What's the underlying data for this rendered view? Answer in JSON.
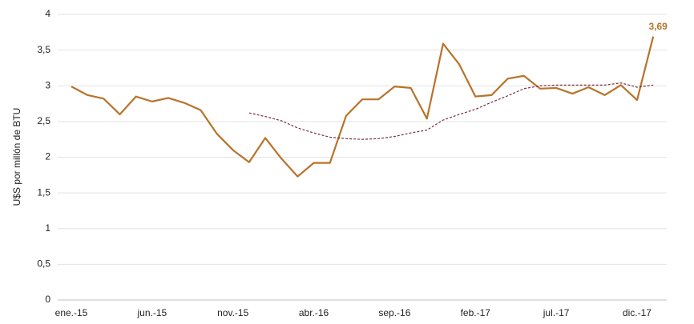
{
  "chart_data": {
    "type": "line",
    "y_label": "U$S por millón de BTU",
    "categories": [
      "ene.-15",
      null,
      null,
      null,
      null,
      "jun.-15",
      null,
      null,
      null,
      null,
      "nov.-15",
      null,
      null,
      null,
      null,
      "abr.-16",
      null,
      null,
      null,
      null,
      "sep.-16",
      null,
      null,
      null,
      null,
      "feb.-17",
      null,
      null,
      null,
      null,
      "jul.-17",
      null,
      null,
      null,
      null,
      "dic.-17",
      null
    ],
    "series": [
      {
        "color": "#b8732a",
        "style": "solid",
        "values": [
          2.99,
          2.87,
          2.82,
          2.6,
          2.85,
          2.78,
          2.83,
          2.76,
          2.66,
          2.33,
          2.1,
          1.93,
          2.27,
          1.98,
          1.73,
          1.92,
          1.92,
          2.58,
          2.81,
          2.81,
          2.99,
          2.97,
          2.54,
          3.59,
          3.3,
          2.85,
          2.87,
          3.1,
          3.14,
          2.96,
          2.97,
          2.89,
          2.98,
          2.87,
          3.01,
          2.8,
          3.69
        ],
        "value_labels": [
          null,
          null,
          null,
          null,
          null,
          null,
          null,
          null,
          null,
          null,
          null,
          null,
          null,
          null,
          null,
          null,
          null,
          null,
          null,
          null,
          null,
          null,
          null,
          null,
          null,
          null,
          null,
          null,
          null,
          null,
          null,
          null,
          null,
          null,
          null,
          null,
          "3,69"
        ]
      },
      {
        "color": "#7b2c3f",
        "style": "dashed",
        "values": [
          null,
          null,
          null,
          null,
          null,
          null,
          null,
          null,
          null,
          null,
          null,
          2.62,
          2.57,
          2.51,
          2.41,
          2.34,
          2.28,
          2.26,
          2.25,
          2.26,
          2.29,
          2.34,
          2.38,
          2.52,
          2.6,
          2.67,
          2.77,
          2.86,
          2.96,
          3.0,
          3.01,
          3.01,
          3.01,
          3.01,
          3.04,
          2.98,
          3.01
        ]
      }
    ],
    "ylim": [
      0,
      4
    ],
    "yticks": [
      0,
      {
        "value": 0.5,
        "label": "0,5"
      },
      1,
      {
        "value": 1.5,
        "label": "1,5"
      },
      2,
      {
        "value": 2.5,
        "label": "2,5"
      },
      3,
      {
        "value": 3.5,
        "label": "3,5"
      },
      4
    ],
    "grid": true
  }
}
